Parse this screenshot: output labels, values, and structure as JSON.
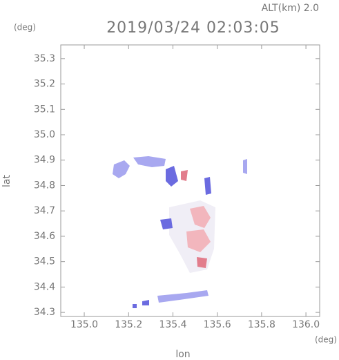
{
  "chart_data": {
    "type": "map",
    "title": "2019/03/24 02:03:05",
    "altitude_label": "ALT(km) 2.0",
    "y_unit": "(deg)",
    "x_unit": "(deg)",
    "x_label": "lon",
    "y_label": "lat",
    "xlim": [
      134.894,
      136.062
    ],
    "ylim": [
      34.284,
      35.354
    ],
    "xticks": [
      {
        "value": 135.0,
        "label": "135.0"
      },
      135.2,
      135.4,
      135.6,
      135.8,
      {
        "value": 136.0,
        "label": "136.0"
      }
    ],
    "yticks": [
      35.3,
      35.2,
      35.1,
      {
        "value": 35.0,
        "label": "35.0"
      },
      34.9,
      34.8,
      34.7,
      34.6,
      34.5,
      34.4,
      34.3
    ]
  }
}
